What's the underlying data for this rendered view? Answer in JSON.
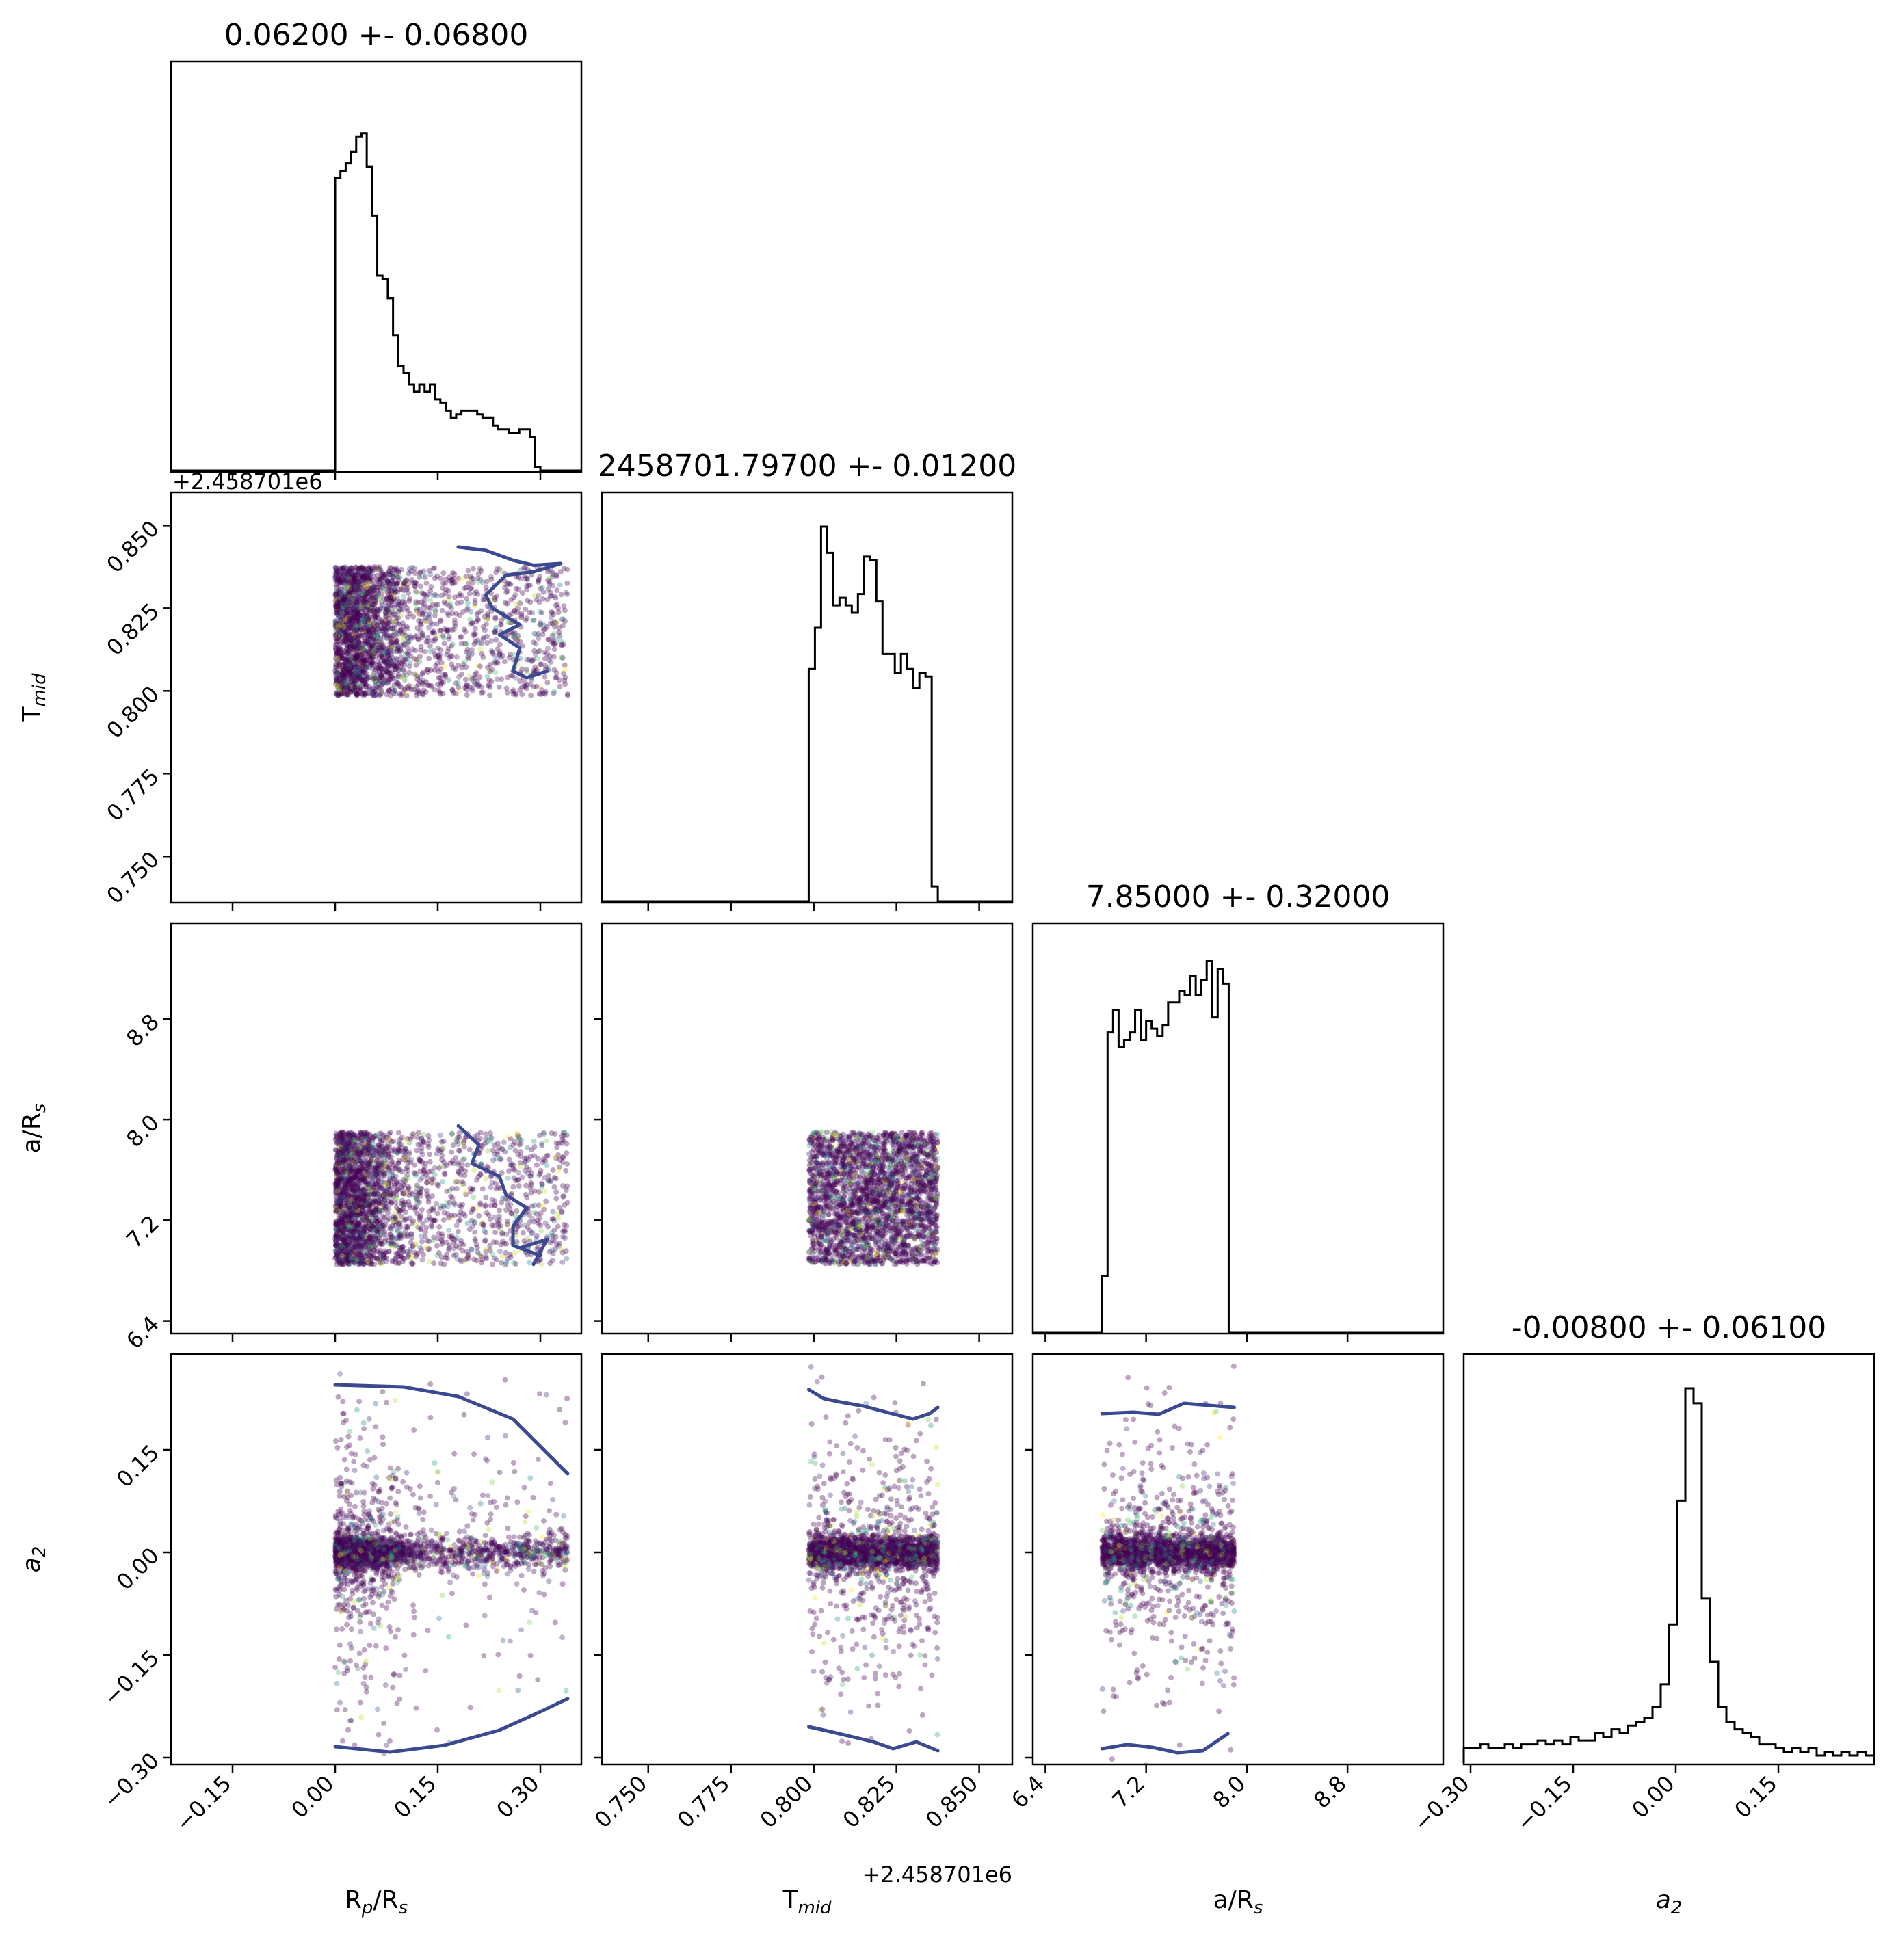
{
  "chart_data": {
    "type": "corner",
    "parameters": [
      {
        "key": "rp",
        "label": "R",
        "sub": "p",
        "suffix": "/R",
        "sub2": "s",
        "title": "0.06200 +- 0.06800",
        "range": [
          -0.24,
          0.36
        ],
        "ticks": [
          -0.15,
          0.0,
          0.15,
          0.3
        ],
        "tick_labels": [
          "−0.15",
          "0.00",
          "0.15",
          "0.30"
        ]
      },
      {
        "key": "tmid",
        "label": "T",
        "sub": "mid",
        "suffix": "",
        "sub2": "",
        "title": "2458701.79700 +- 0.01200",
        "range": [
          0.736,
          0.86
        ],
        "ticks": [
          0.75,
          0.775,
          0.8,
          0.825,
          0.85
        ],
        "tick_labels": [
          "0.750",
          "0.775",
          "0.800",
          "0.825",
          "0.850"
        ],
        "offset": "+2.458701e6"
      },
      {
        "key": "ar",
        "label": "a/R",
        "sub": "",
        "suffix": "",
        "sub2": "s",
        "title": "7.85000 +- 0.32000",
        "range": [
          6.3,
          9.56
        ],
        "ticks": [
          6.4,
          7.2,
          8.0,
          8.8
        ],
        "tick_labels": [
          "6.4",
          "7.2",
          "8.0",
          "8.8"
        ]
      },
      {
        "key": "a2",
        "label": "a",
        "sub": "2",
        "suffix": "",
        "sub2": "",
        "title": "-0.00800 +- 0.06100",
        "italic": true,
        "range": [
          -0.31,
          0.29
        ],
        "ticks": [
          -0.3,
          -0.15,
          0.0,
          0.15
        ],
        "tick_labels": [
          "−0.30",
          "−0.15",
          "0.00",
          "0.15"
        ]
      }
    ],
    "histograms": {
      "rp": {
        "start": 0.0,
        "end": 0.3,
        "counts": [
          0.78,
          0.8,
          0.82,
          0.85,
          0.89,
          0.9,
          0.81,
          0.68,
          0.52,
          0.51,
          0.46,
          0.36,
          0.28,
          0.26,
          0.23,
          0.21,
          0.23,
          0.21,
          0.23,
          0.19,
          0.18,
          0.16,
          0.14,
          0.15,
          0.16,
          0.16,
          0.16,
          0.15,
          0.14,
          0.14,
          0.12,
          0.11,
          0.11,
          0.1,
          0.1,
          0.11,
          0.11,
          0.09,
          0.01
        ]
      },
      "tmid": {
        "start": 0.7985,
        "end": 0.8375,
        "counts": [
          0.62,
          0.73,
          1.0,
          0.93,
          0.79,
          0.81,
          0.79,
          0.77,
          0.82,
          0.92,
          0.91,
          0.8,
          0.66,
          0.66,
          0.61,
          0.66,
          0.62,
          0.57,
          0.61,
          0.6,
          0.04
        ]
      },
      "ar": {
        "start": 6.85,
        "end": 7.9,
        "counts": [
          0.15,
          0.8,
          0.86,
          0.76,
          0.78,
          0.8,
          0.86,
          0.78,
          0.83,
          0.81,
          0.79,
          0.82,
          0.88,
          0.88,
          0.91,
          0.9,
          0.95,
          0.9,
          0.94,
          0.99,
          0.84,
          0.97,
          0.93,
          0.0
        ]
      },
      "a2": {
        "start": -0.31,
        "end": 0.29,
        "counts": [
          0.04,
          0.04,
          0.05,
          0.04,
          0.04,
          0.05,
          0.04,
          0.05,
          0.05,
          0.06,
          0.05,
          0.06,
          0.05,
          0.07,
          0.06,
          0.06,
          0.08,
          0.07,
          0.09,
          0.08,
          0.1,
          0.11,
          0.12,
          0.15,
          0.21,
          0.37,
          0.7,
          1.0,
          0.96,
          0.44,
          0.27,
          0.15,
          0.11,
          0.09,
          0.08,
          0.07,
          0.05,
          0.05,
          0.04,
          0.03,
          0.04,
          0.03,
          0.04,
          0.02,
          0.03,
          0.02,
          0.03,
          0.02,
          0.03,
          0.02
        ]
      }
    },
    "scatter_bounds": {
      "rp": [
        0.0,
        0.34
      ],
      "tmid": [
        0.7985,
        0.8375
      ],
      "ar": [
        6.85,
        7.9
      ],
      "a2": [
        -0.32,
        0.33
      ]
    },
    "contours": {
      "tmid_rp": [
        [
          0.18,
          0.8435
        ],
        [
          0.22,
          0.8425
        ],
        [
          0.26,
          0.8395
        ],
        [
          0.29,
          0.838
        ],
        [
          0.33,
          0.8385
        ],
        [
          0.29,
          0.836
        ],
        [
          0.25,
          0.835
        ],
        [
          0.22,
          0.829
        ],
        [
          0.23,
          0.825
        ],
        [
          0.27,
          0.82
        ],
        [
          0.24,
          0.817
        ],
        [
          0.27,
          0.813
        ],
        [
          0.26,
          0.806
        ],
        [
          0.28,
          0.804
        ],
        [
          0.31,
          0.806
        ]
      ],
      "ar_rp": [
        [
          0.18,
          7.95
        ],
        [
          0.21,
          7.8
        ],
        [
          0.2,
          7.65
        ],
        [
          0.24,
          7.55
        ],
        [
          0.25,
          7.4
        ],
        [
          0.28,
          7.3
        ],
        [
          0.26,
          7.15
        ],
        [
          0.26,
          7.0
        ],
        [
          0.3,
          6.92
        ],
        [
          0.27,
          6.98
        ],
        [
          0.31,
          7.05
        ],
        [
          0.29,
          6.85
        ]
      ],
      "a2_rp_upper": [
        [
          0.0,
          0.245
        ],
        [
          0.1,
          0.242
        ],
        [
          0.18,
          0.228
        ],
        [
          0.26,
          0.195
        ],
        [
          0.3,
          0.155
        ],
        [
          0.34,
          0.115
        ]
      ],
      "a2_rp_lower": [
        [
          0.0,
          -0.284
        ],
        [
          0.08,
          -0.292
        ],
        [
          0.16,
          -0.282
        ],
        [
          0.24,
          -0.26
        ],
        [
          0.3,
          -0.233
        ],
        [
          0.34,
          -0.214
        ]
      ],
      "a2_tmid_upper": [
        [
          0.7985,
          0.238
        ],
        [
          0.803,
          0.225
        ],
        [
          0.808,
          0.22
        ],
        [
          0.815,
          0.214
        ],
        [
          0.822,
          0.205
        ],
        [
          0.83,
          0.195
        ],
        [
          0.835,
          0.203
        ],
        [
          0.8375,
          0.212
        ]
      ],
      "a2_tmid_lower": [
        [
          0.7985,
          -0.255
        ],
        [
          0.805,
          -0.262
        ],
        [
          0.812,
          -0.27
        ],
        [
          0.818,
          -0.277
        ],
        [
          0.824,
          -0.287
        ],
        [
          0.831,
          -0.277
        ],
        [
          0.8375,
          -0.29
        ]
      ],
      "a2_ar_upper": [
        [
          6.85,
          0.203
        ],
        [
          7.1,
          0.205
        ],
        [
          7.3,
          0.202
        ],
        [
          7.5,
          0.218
        ],
        [
          7.7,
          0.215
        ],
        [
          7.9,
          0.212
        ]
      ],
      "a2_ar_lower": [
        [
          6.85,
          -0.287
        ],
        [
          7.05,
          -0.281
        ],
        [
          7.25,
          -0.285
        ],
        [
          7.45,
          -0.293
        ],
        [
          7.65,
          -0.29
        ],
        [
          7.85,
          -0.265
        ]
      ]
    },
    "contour_color": "#3b4990",
    "point_colors": [
      "#440154",
      "#482475",
      "#414487",
      "#355f8d",
      "#2a788e",
      "#21918c",
      "#22a884",
      "#44bf70",
      "#7ad151",
      "#bddf26",
      "#fde725"
    ]
  }
}
